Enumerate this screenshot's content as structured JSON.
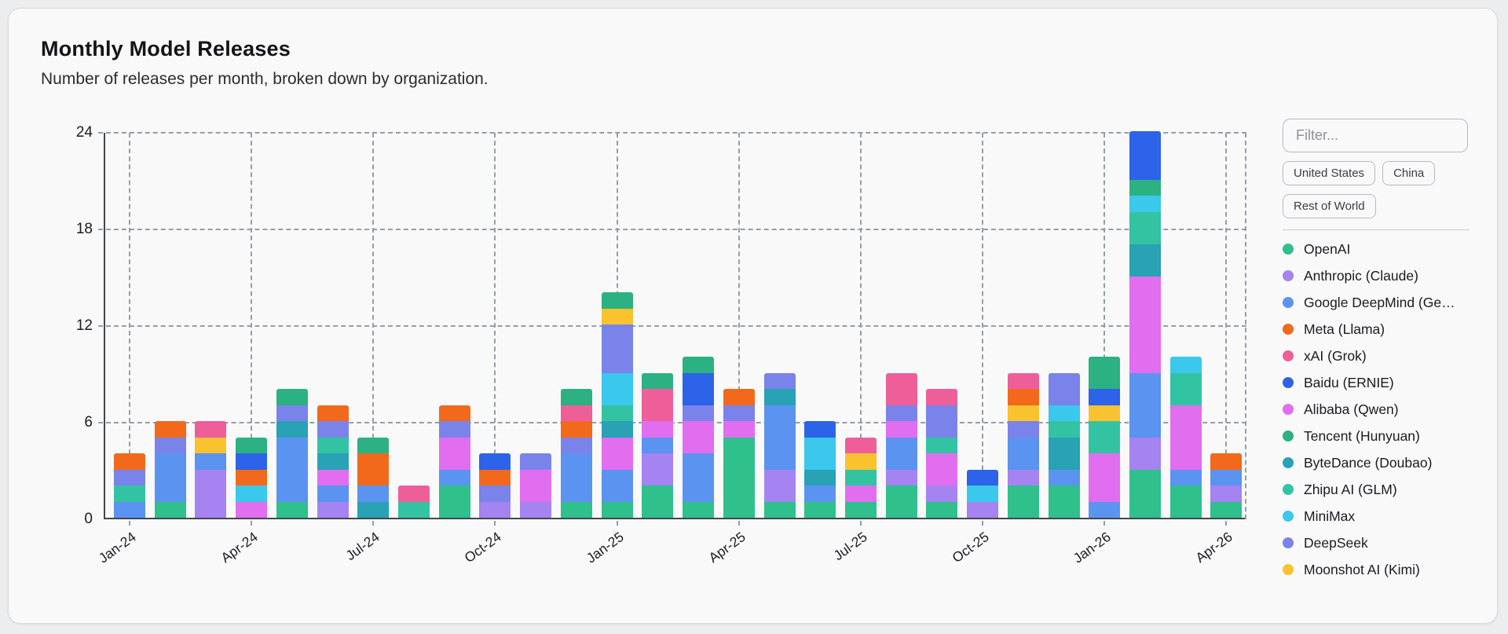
{
  "header": {
    "title": "Monthly Model Releases",
    "subtitle": "Number of releases per month, broken down by organization."
  },
  "filters": {
    "placeholder": "Filter...",
    "buttons": [
      "United States",
      "China",
      "Rest of World"
    ]
  },
  "chart_data": {
    "type": "bar",
    "stacked": true,
    "title": "Monthly Model Releases",
    "xlabel": "",
    "ylabel": "",
    "ylim": [
      0,
      24
    ],
    "yticks": [
      0,
      6,
      12,
      18,
      24
    ],
    "grid": "dashed",
    "legend_position": "right",
    "x_tick_labels": [
      "Jan-24",
      "Apr-24",
      "Jul-24",
      "Oct-24",
      "Jan-25",
      "Apr-25",
      "Jul-25",
      "Oct-25",
      "Jan-26",
      "Apr-26"
    ],
    "categories": [
      "Jan-24",
      "Feb-24",
      "Mar-24",
      "Apr-24",
      "May-24",
      "Jun-24",
      "Jul-24",
      "Aug-24",
      "Sep-24",
      "Oct-24",
      "Nov-24",
      "Dec-24",
      "Jan-25",
      "Feb-25",
      "Mar-25",
      "Apr-25",
      "May-25",
      "Jun-25",
      "Jul-25",
      "Aug-25",
      "Sep-25",
      "Oct-25",
      "Nov-25",
      "Dec-25",
      "Jan-26",
      "Feb-26",
      "Mar-26",
      "Apr-26"
    ],
    "organizations": [
      {
        "id": "openai",
        "label": "OpenAI",
        "color": "#2fc08c"
      },
      {
        "id": "anthropic",
        "label": "Anthropic (Claude)",
        "color": "#a583f0"
      },
      {
        "id": "google",
        "label": "Google DeepMind (Ge…",
        "color": "#5b93f0"
      },
      {
        "id": "meta",
        "label": "Meta (Llama)",
        "color": "#f2691c"
      },
      {
        "id": "xai",
        "label": "xAI (Grok)",
        "color": "#ee5f9a"
      },
      {
        "id": "baidu",
        "label": "Baidu (ERNIE)",
        "color": "#2d63e8"
      },
      {
        "id": "alibaba",
        "label": "Alibaba (Qwen)",
        "color": "#e06eee"
      },
      {
        "id": "tencent",
        "label": "Tencent (Hunyuan)",
        "color": "#2cb182"
      },
      {
        "id": "bytedance",
        "label": "ByteDance (Doubao)",
        "color": "#28a2b4"
      },
      {
        "id": "zhipu",
        "label": "Zhipu AI (GLM)",
        "color": "#33c3a3"
      },
      {
        "id": "minimax",
        "label": "MiniMax",
        "color": "#3ac8ec"
      },
      {
        "id": "deepseek",
        "label": "DeepSeek",
        "color": "#7a83ea"
      },
      {
        "id": "moonshot",
        "label": "Moonshot AI (Kimi)",
        "color": "#f8c32f"
      }
    ],
    "bars": [
      {
        "month": "Jan-24",
        "total": 4,
        "segments": [
          [
            "google",
            1
          ],
          [
            "zhipu",
            1
          ],
          [
            "deepseek",
            1
          ],
          [
            "meta",
            1
          ]
        ]
      },
      {
        "month": "Feb-24",
        "total": 6,
        "segments": [
          [
            "openai",
            1
          ],
          [
            "google",
            3
          ],
          [
            "deepseek",
            1
          ],
          [
            "meta",
            1
          ]
        ]
      },
      {
        "month": "Mar-24",
        "total": 6,
        "segments": [
          [
            "anthropic",
            3
          ],
          [
            "google",
            1
          ],
          [
            "moonshot",
            1
          ],
          [
            "xai",
            1
          ]
        ]
      },
      {
        "month": "Apr-24",
        "total": 5,
        "segments": [
          [
            "alibaba",
            1
          ],
          [
            "minimax",
            1
          ],
          [
            "meta",
            1
          ],
          [
            "baidu",
            1
          ],
          [
            "tencent",
            1
          ]
        ]
      },
      {
        "month": "May-24",
        "total": 8,
        "segments": [
          [
            "openai",
            1
          ],
          [
            "google",
            4
          ],
          [
            "bytedance",
            1
          ],
          [
            "deepseek",
            1
          ],
          [
            "tencent",
            1
          ]
        ]
      },
      {
        "month": "Jun-24",
        "total": 7,
        "segments": [
          [
            "anthropic",
            1
          ],
          [
            "google",
            1
          ],
          [
            "alibaba",
            1
          ],
          [
            "bytedance",
            1
          ],
          [
            "zhipu",
            1
          ],
          [
            "deepseek",
            1
          ],
          [
            "meta",
            1
          ]
        ]
      },
      {
        "month": "Jul-24",
        "total": 5,
        "segments": [
          [
            "bytedance",
            1
          ],
          [
            "google",
            1
          ],
          [
            "meta",
            2
          ],
          [
            "tencent",
            1
          ]
        ]
      },
      {
        "month": "Aug-24",
        "total": 2,
        "segments": [
          [
            "zhipu",
            1
          ],
          [
            "xai",
            1
          ]
        ]
      },
      {
        "month": "Sep-24",
        "total": 7,
        "segments": [
          [
            "openai",
            2
          ],
          [
            "google",
            1
          ],
          [
            "alibaba",
            2
          ],
          [
            "deepseek",
            1
          ],
          [
            "meta",
            1
          ]
        ]
      },
      {
        "month": "Oct-24",
        "total": 4,
        "segments": [
          [
            "anthropic",
            1
          ],
          [
            "deepseek",
            1
          ],
          [
            "meta",
            1
          ],
          [
            "baidu",
            1
          ]
        ]
      },
      {
        "month": "Nov-24",
        "total": 4,
        "segments": [
          [
            "anthropic",
            1
          ],
          [
            "alibaba",
            2
          ],
          [
            "deepseek",
            1
          ]
        ]
      },
      {
        "month": "Dec-24",
        "total": 8,
        "segments": [
          [
            "openai",
            1
          ],
          [
            "google",
            3
          ],
          [
            "deepseek",
            1
          ],
          [
            "meta",
            1
          ],
          [
            "xai",
            1
          ],
          [
            "tencent",
            1
          ]
        ]
      },
      {
        "month": "Jan-25",
        "total": 14,
        "segments": [
          [
            "openai",
            1
          ],
          [
            "google",
            2
          ],
          [
            "alibaba",
            2
          ],
          [
            "bytedance",
            1
          ],
          [
            "zhipu",
            1
          ],
          [
            "minimax",
            2
          ],
          [
            "deepseek",
            3
          ],
          [
            "moonshot",
            1
          ],
          [
            "tencent",
            1
          ]
        ]
      },
      {
        "month": "Feb-25",
        "total": 9,
        "segments": [
          [
            "openai",
            2
          ],
          [
            "anthropic",
            2
          ],
          [
            "google",
            1
          ],
          [
            "alibaba",
            1
          ],
          [
            "xai",
            2
          ],
          [
            "tencent",
            1
          ]
        ]
      },
      {
        "month": "Mar-25",
        "total": 10,
        "segments": [
          [
            "openai",
            1
          ],
          [
            "google",
            3
          ],
          [
            "alibaba",
            2
          ],
          [
            "deepseek",
            1
          ],
          [
            "baidu",
            2
          ],
          [
            "tencent",
            1
          ]
        ]
      },
      {
        "month": "Apr-25",
        "total": 8,
        "segments": [
          [
            "openai",
            5
          ],
          [
            "alibaba",
            1
          ],
          [
            "deepseek",
            1
          ],
          [
            "meta",
            1
          ]
        ]
      },
      {
        "month": "May-25",
        "total": 9,
        "segments": [
          [
            "openai",
            1
          ],
          [
            "anthropic",
            2
          ],
          [
            "google",
            4
          ],
          [
            "bytedance",
            1
          ],
          [
            "deepseek",
            1
          ]
        ]
      },
      {
        "month": "Jun-25",
        "total": 6,
        "segments": [
          [
            "openai",
            1
          ],
          [
            "google",
            1
          ],
          [
            "bytedance",
            1
          ],
          [
            "minimax",
            2
          ],
          [
            "baidu",
            1
          ]
        ]
      },
      {
        "month": "Jul-25",
        "total": 5,
        "segments": [
          [
            "openai",
            1
          ],
          [
            "alibaba",
            1
          ],
          [
            "zhipu",
            1
          ],
          [
            "moonshot",
            1
          ],
          [
            "xai",
            1
          ]
        ]
      },
      {
        "month": "Aug-25",
        "total": 9,
        "segments": [
          [
            "openai",
            2
          ],
          [
            "anthropic",
            1
          ],
          [
            "google",
            2
          ],
          [
            "alibaba",
            1
          ],
          [
            "deepseek",
            1
          ],
          [
            "xai",
            2
          ]
        ]
      },
      {
        "month": "Sep-25",
        "total": 8,
        "segments": [
          [
            "openai",
            1
          ],
          [
            "anthropic",
            1
          ],
          [
            "alibaba",
            2
          ],
          [
            "zhipu",
            1
          ],
          [
            "deepseek",
            2
          ],
          [
            "xai",
            1
          ]
        ]
      },
      {
        "month": "Oct-25",
        "total": 3,
        "segments": [
          [
            "anthropic",
            1
          ],
          [
            "minimax",
            1
          ],
          [
            "baidu",
            1
          ]
        ]
      },
      {
        "month": "Nov-25",
        "total": 9,
        "segments": [
          [
            "openai",
            2
          ],
          [
            "anthropic",
            1
          ],
          [
            "google",
            2
          ],
          [
            "deepseek",
            1
          ],
          [
            "moonshot",
            1
          ],
          [
            "meta",
            1
          ],
          [
            "xai",
            1
          ]
        ]
      },
      {
        "month": "Dec-25",
        "total": 9,
        "segments": [
          [
            "openai",
            2
          ],
          [
            "google",
            1
          ],
          [
            "bytedance",
            2
          ],
          [
            "zhipu",
            1
          ],
          [
            "minimax",
            1
          ],
          [
            "deepseek",
            2
          ]
        ]
      },
      {
        "month": "Jan-26",
        "total": 10,
        "segments": [
          [
            "google",
            1
          ],
          [
            "alibaba",
            3
          ],
          [
            "zhipu",
            2
          ],
          [
            "moonshot",
            1
          ],
          [
            "baidu",
            1
          ],
          [
            "tencent",
            2
          ]
        ]
      },
      {
        "month": "Feb-26",
        "total": 24,
        "segments": [
          [
            "openai",
            3
          ],
          [
            "anthropic",
            2
          ],
          [
            "google",
            4
          ],
          [
            "alibaba",
            6
          ],
          [
            "bytedance",
            2
          ],
          [
            "zhipu",
            2
          ],
          [
            "minimax",
            1
          ],
          [
            "tencent",
            1
          ],
          [
            "baidu",
            3
          ]
        ]
      },
      {
        "month": "Mar-26",
        "total": 10,
        "segments": [
          [
            "openai",
            2
          ],
          [
            "google",
            1
          ],
          [
            "alibaba",
            4
          ],
          [
            "zhipu",
            2
          ],
          [
            "minimax",
            1
          ]
        ]
      },
      {
        "month": "Apr-26",
        "total": 4,
        "segments": [
          [
            "openai",
            1
          ],
          [
            "anthropic",
            1
          ],
          [
            "google",
            1
          ],
          [
            "meta",
            1
          ]
        ]
      }
    ]
  }
}
